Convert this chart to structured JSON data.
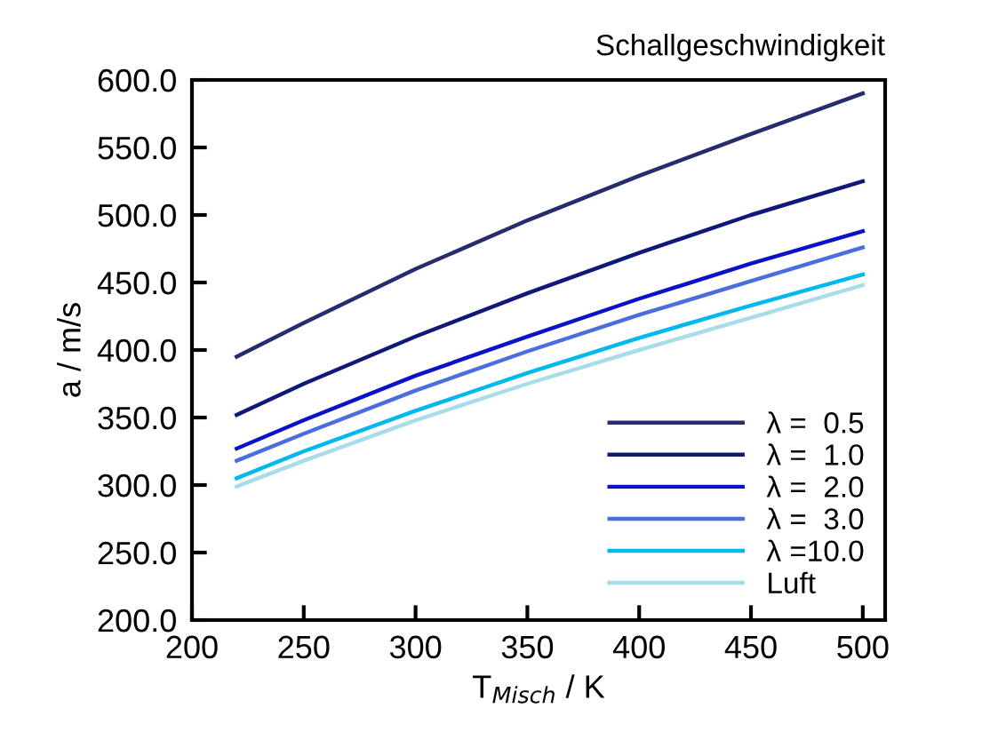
{
  "chart_data": {
    "type": "line",
    "title": "Schallgeschwindigkeit",
    "xlabel": "T$_{Misch}$ / K",
    "ylabel": "a / m/s",
    "x": [
      220,
      250,
      300,
      350,
      400,
      450,
      500
    ],
    "series": [
      {
        "name": "λ =  0.5",
        "color": "#262c6e",
        "values": [
          395,
          420,
          460,
          496,
          529,
          560,
          590
        ]
      },
      {
        "name": "λ =  1.0",
        "color": "#101878",
        "values": [
          352,
          375,
          410,
          442,
          472,
          500,
          525
        ]
      },
      {
        "name": "λ =  2.0",
        "color": "#0a12c8",
        "values": [
          327,
          348,
          381,
          410,
          438,
          464,
          488
        ]
      },
      {
        "name": "λ =  3.0",
        "color": "#4a6ee0",
        "values": [
          318,
          338,
          370,
          399,
          426,
          451,
          476
        ]
      },
      {
        "name": "λ =10.0",
        "color": "#00b8f0",
        "values": [
          305,
          325,
          355,
          383,
          409,
          433,
          456
        ]
      },
      {
        "name": "Luft",
        "color": "#a8dce8",
        "values": [
          299,
          318,
          348,
          375,
          400,
          424,
          448
        ]
      }
    ],
    "xlim": [
      200,
      510
    ],
    "xticks": [
      200,
      250,
      300,
      350,
      400,
      450,
      500
    ],
    "ylim": [
      200,
      600
    ],
    "yticks": [
      {
        "value": 200,
        "label": "200.0"
      },
      {
        "value": 250,
        "label": "250.0"
      },
      {
        "value": 300,
        "label": "300.0"
      },
      {
        "value": 350,
        "label": "350.0"
      },
      {
        "value": 400,
        "label": "400.0"
      },
      {
        "value": 450,
        "label": "450.0"
      },
      {
        "value": 500,
        "label": "500.0"
      },
      {
        "value": 550,
        "label": "550.0"
      },
      {
        "value": 600,
        "label": "600.0"
      }
    ],
    "grid": false,
    "legend": "bottom right",
    "marker": "none",
    "line_style": "solid"
  }
}
